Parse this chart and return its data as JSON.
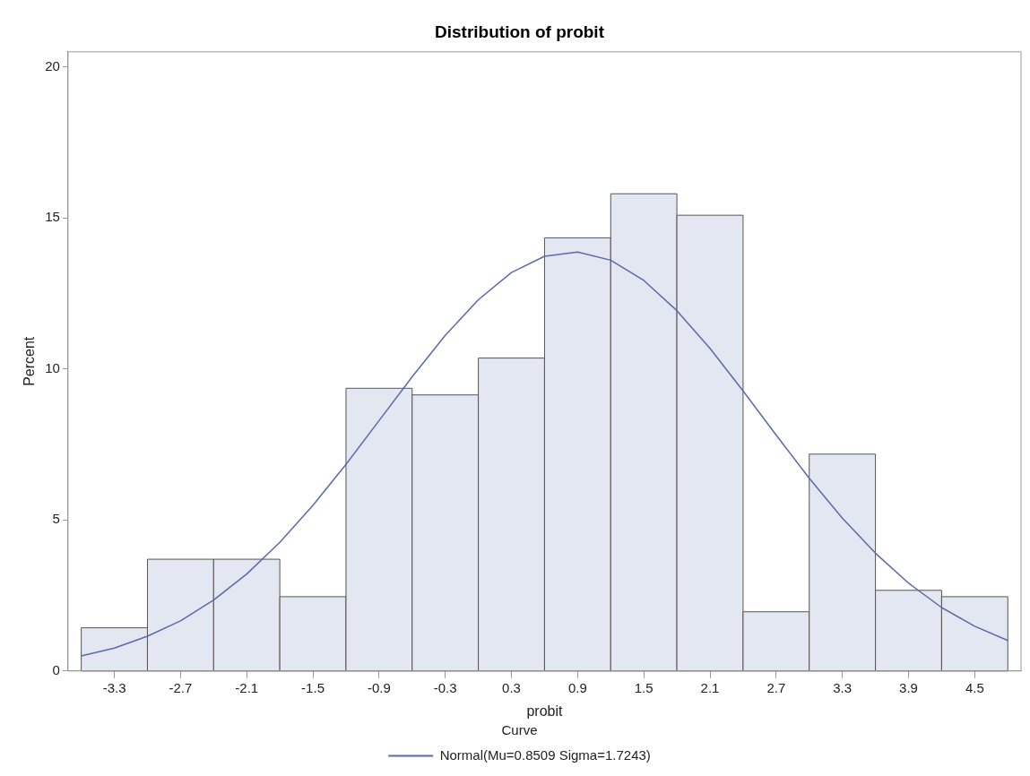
{
  "chart_data": {
    "type": "histogram",
    "title": "Distribution of probit",
    "xlabel": "probit",
    "ylabel": "Percent",
    "legend_title": "Curve",
    "bins": [
      -3.6,
      -3.0,
      -2.4,
      -1.8,
      -1.2,
      -0.6,
      0.0,
      0.6,
      1.2,
      1.8,
      2.4,
      3.0,
      3.6,
      4.2,
      4.8
    ],
    "values": [
      1.43,
      3.7,
      3.7,
      2.46,
      9.36,
      9.14,
      10.36,
      14.34,
      15.8,
      15.09,
      1.96,
      7.18,
      2.67,
      2.46
    ],
    "color": "#e3e7f1",
    "series": [
      {
        "type": "line",
        "name": "Normal(Mu=0.8509 Sigma=1.7243)",
        "color": "#5a6aaa",
        "x": [
          -3.6,
          -3.3,
          -3.0,
          -2.7,
          -2.4,
          -2.1,
          -1.8,
          -1.5,
          -1.2,
          -0.9,
          -0.6,
          -0.3,
          0.0,
          0.3,
          0.6,
          0.9,
          1.2,
          1.5,
          1.8,
          2.1,
          2.4,
          2.7,
          3.0,
          3.3,
          3.6,
          3.9,
          4.2,
          4.5,
          4.8
        ],
        "values": [
          0.5,
          0.76,
          1.15,
          1.66,
          2.35,
          3.21,
          4.26,
          5.48,
          6.84,
          8.29,
          9.74,
          11.11,
          12.29,
          13.19,
          13.73,
          13.87,
          13.6,
          12.93,
          11.93,
          10.68,
          9.27,
          7.81,
          6.38,
          5.06,
          3.9,
          2.91,
          2.1,
          1.48,
          1.01
        ]
      }
    ],
    "xlim": [
      -3.72,
      4.92
    ],
    "xticks": [
      -3.3,
      -2.7,
      -2.1,
      -1.5,
      -0.9,
      -0.3,
      0.3,
      0.9,
      1.5,
      2.1,
      2.7,
      3.3,
      3.9,
      4.5
    ],
    "ylim": [
      0,
      20.5
    ],
    "yticks": [
      0,
      5,
      10,
      15,
      20
    ],
    "grid": false,
    "legend": "bottom",
    "marker": "none",
    "line_style": "solid"
  }
}
